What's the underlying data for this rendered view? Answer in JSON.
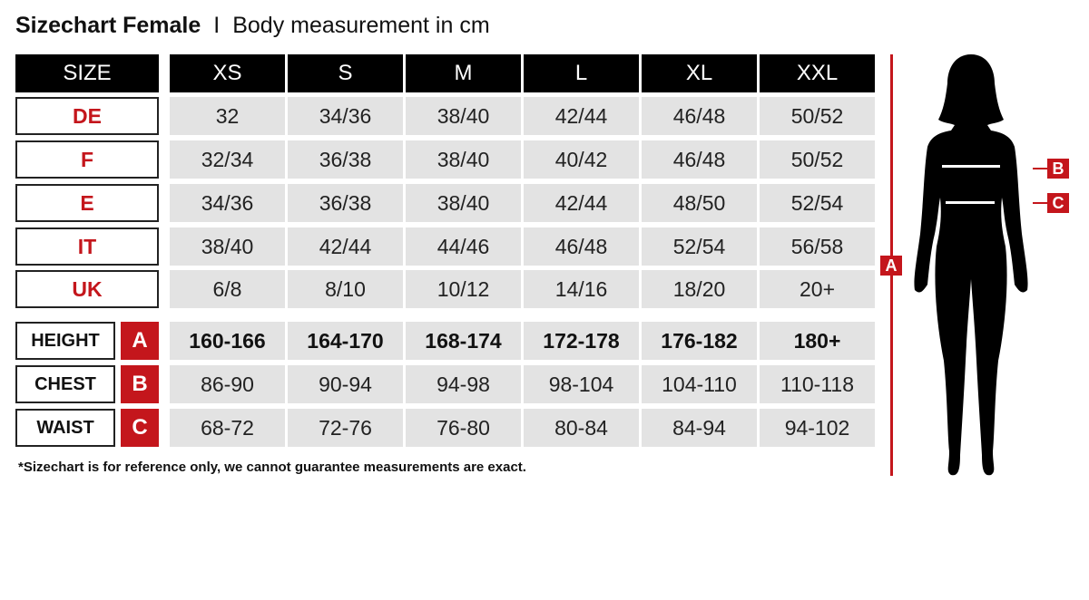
{
  "title": {
    "main": "Sizechart Female",
    "separator": "I",
    "subtitle": "Body measurement in cm"
  },
  "header": {
    "label": "SIZE",
    "sizes": [
      "XS",
      "S",
      "M",
      "L",
      "XL",
      "XXL"
    ]
  },
  "conversions": [
    {
      "label": "DE",
      "values": [
        "32",
        "34/36",
        "38/40",
        "42/44",
        "46/48",
        "50/52"
      ]
    },
    {
      "label": "F",
      "values": [
        "32/34",
        "36/38",
        "38/40",
        "40/42",
        "46/48",
        "50/52"
      ]
    },
    {
      "label": "E",
      "values": [
        "34/36",
        "36/38",
        "38/40",
        "42/44",
        "48/50",
        "52/54"
      ]
    },
    {
      "label": "IT",
      "values": [
        "38/40",
        "42/44",
        "44/46",
        "46/48",
        "52/54",
        "56/58"
      ]
    },
    {
      "label": "UK",
      "values": [
        "6/8",
        "8/10",
        "10/12",
        "14/16",
        "18/20",
        "20+"
      ]
    }
  ],
  "measurements": [
    {
      "label": "HEIGHT",
      "letter": "A",
      "values": [
        "160-166",
        "164-170",
        "168-174",
        "172-178",
        "176-182",
        "180+"
      ]
    },
    {
      "label": "CHEST",
      "letter": "B",
      "values": [
        "86-90",
        "90-94",
        "94-98",
        "98-104",
        "104-110",
        "110-118"
      ]
    },
    {
      "label": "WAIST",
      "letter": "C",
      "values": [
        "68-72",
        "72-76",
        "76-80",
        "80-84",
        "84-94",
        "94-102"
      ]
    }
  ],
  "note": "*Sizechart is for reference only, we cannot guarantee measurements are exact.",
  "figure": {
    "height_tag": "A",
    "chest_tag": "B",
    "waist_tag": "C"
  },
  "colors": {
    "accent": "#c4161c",
    "header": "#000000",
    "cell": "#e3e3e3"
  }
}
